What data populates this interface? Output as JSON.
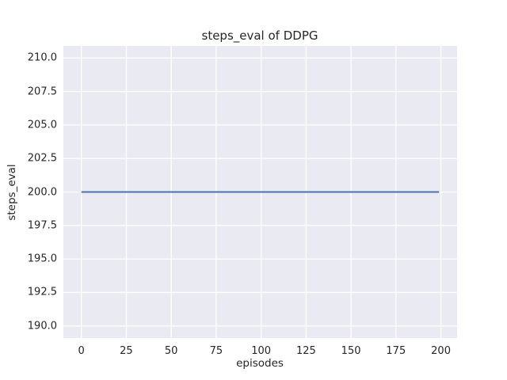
{
  "chart_data": {
    "type": "line",
    "title": "steps_eval of DDPG",
    "xlabel": "episodes",
    "ylabel": "steps_eval",
    "xlim": [
      -10,
      209
    ],
    "ylim": [
      189.1,
      210.9
    ],
    "grid": true,
    "legend": false,
    "x_ticks": {
      "values": [
        0,
        25,
        50,
        75,
        100,
        125,
        150,
        175,
        200
      ],
      "labels": [
        "0",
        "25",
        "50",
        "75",
        "100",
        "125",
        "150",
        "175",
        "200"
      ]
    },
    "y_ticks": {
      "values": [
        190.0,
        192.5,
        195.0,
        197.5,
        200.0,
        202.5,
        205.0,
        207.5,
        210.0
      ],
      "labels": [
        "190.0",
        "192.5",
        "195.0",
        "197.5",
        "200.0",
        "202.5",
        "205.0",
        "207.5",
        "210.0"
      ]
    },
    "series": [
      {
        "name": "DDPG",
        "x": [
          0,
          199
        ],
        "values": [
          200,
          200
        ],
        "note": "constant evaluation steps of 200 for every episode 0-199",
        "color": "#4c72b0",
        "line_width": 2
      }
    ],
    "style": {
      "figure_background": "#ffffff",
      "axes_background": "#eaeaf2",
      "grid_color": "#ffffff",
      "text_color": "#262626"
    }
  }
}
